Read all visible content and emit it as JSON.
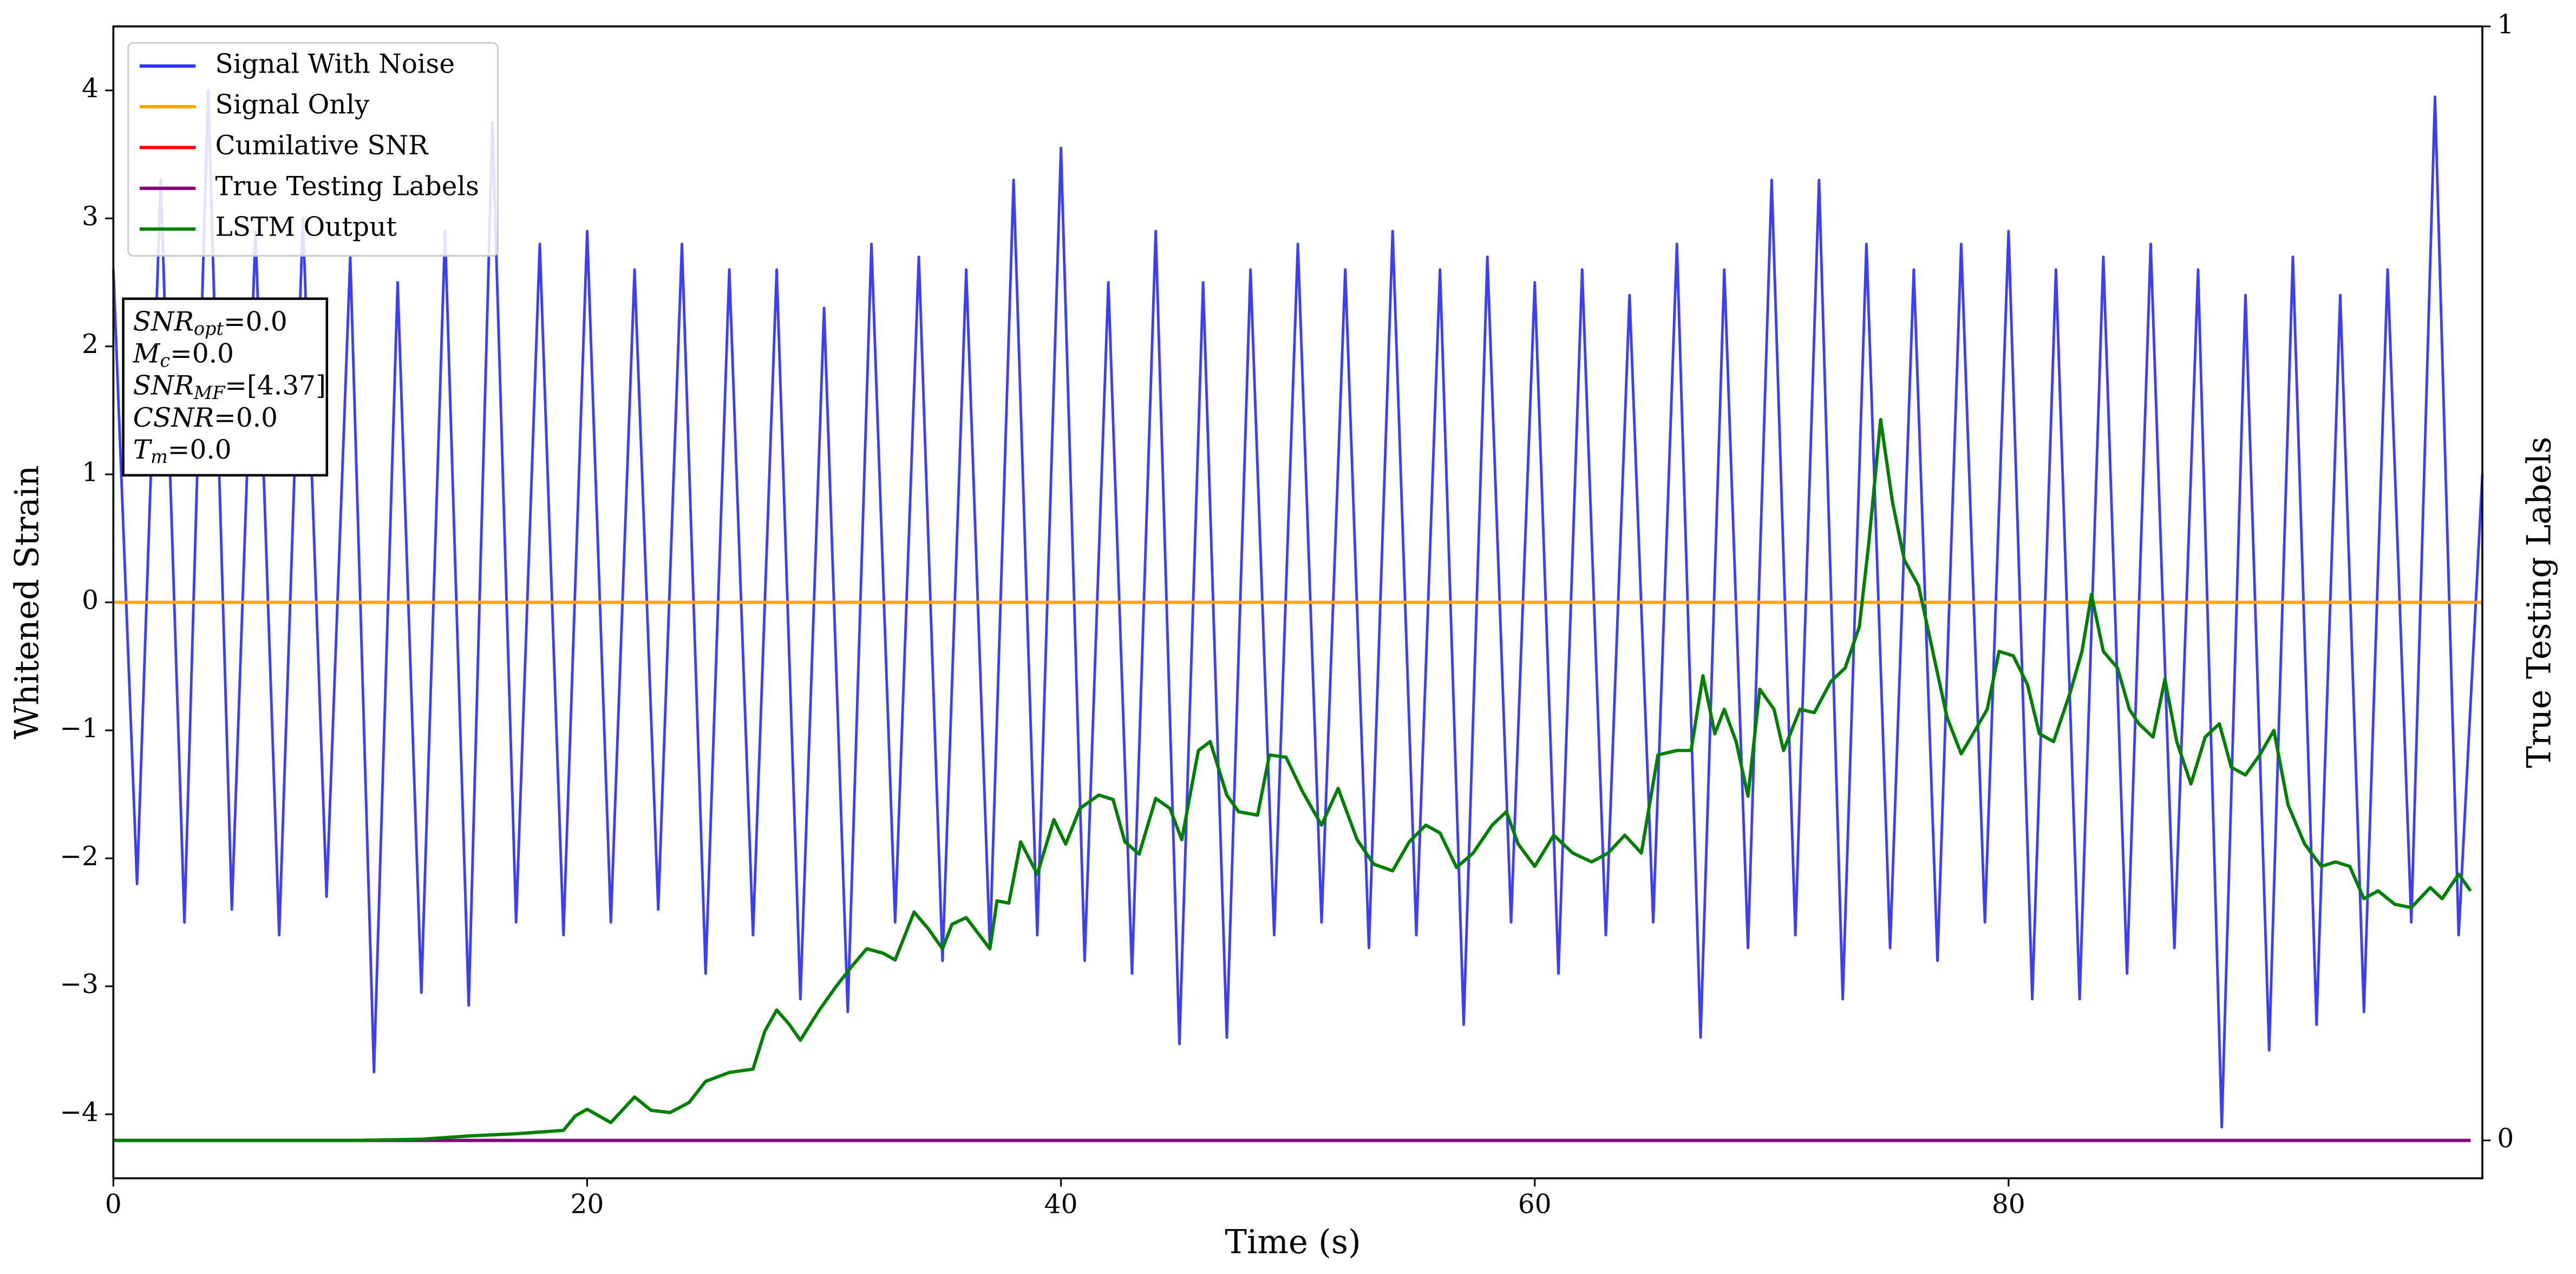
{
  "chart_data": {
    "type": "line",
    "xlabel": "Time (s)",
    "ylabel": "Whitened Strain",
    "y2label": "True Testing Labels",
    "xlim": [
      0,
      100
    ],
    "ylim": [
      -4.5,
      4.5
    ],
    "y2lim": [
      -0.034,
      1.0
    ],
    "xticks": [
      0,
      20,
      40,
      60,
      80
    ],
    "yticks": [
      {
        "value": -4,
        "label": "−4"
      },
      {
        "value": -3,
        "label": "−3"
      },
      {
        "value": -2,
        "label": "−2"
      },
      {
        "value": -1,
        "label": "−1"
      },
      0,
      1,
      2,
      3,
      4
    ],
    "y2ticks": [
      0,
      1
    ],
    "legend": "upper left",
    "series": [
      {
        "name": "Signal With Noise",
        "color": "#3333ff",
        "x": [
          0,
          1,
          2,
          3,
          4,
          5,
          6,
          7,
          8,
          9,
          10,
          11,
          12,
          13,
          14,
          15,
          16,
          17,
          18,
          19,
          20,
          21,
          22,
          23,
          24,
          25,
          26,
          27,
          28,
          29,
          30,
          31,
          32,
          33,
          34,
          35,
          36,
          37,
          38,
          39,
          40,
          41,
          42,
          43,
          44,
          45,
          46,
          47,
          48,
          49,
          50,
          51,
          52,
          53,
          54,
          55,
          56,
          57,
          58,
          59,
          60,
          61,
          62,
          63,
          64,
          65,
          66,
          67,
          68,
          69,
          70,
          71,
          72,
          73,
          74,
          75,
          76,
          77,
          78,
          79,
          80,
          81,
          82,
          83,
          84,
          85,
          86,
          87,
          88,
          89,
          90,
          91,
          92,
          93,
          94,
          95,
          96,
          97,
          98,
          99,
          100
        ],
        "values": [
          2.6,
          -2.2,
          3.3,
          -2.5,
          4.0,
          -2.4,
          2.9,
          -2.6,
          3.0,
          -2.3,
          2.7,
          -3.67,
          2.5,
          -3.05,
          2.9,
          -3.15,
          3.75,
          -2.5,
          2.8,
          -2.6,
          2.9,
          -2.5,
          2.6,
          -2.4,
          2.8,
          -2.9,
          2.6,
          -2.6,
          2.6,
          -3.1,
          2.3,
          -3.2,
          2.8,
          -2.5,
          2.7,
          -2.8,
          2.6,
          -2.7,
          3.3,
          -2.6,
          3.55,
          -2.8,
          2.5,
          -2.9,
          2.9,
          -3.45,
          2.5,
          -3.4,
          2.6,
          -2.6,
          2.8,
          -2.5,
          2.6,
          -2.7,
          2.9,
          -2.6,
          2.6,
          -3.3,
          2.7,
          -2.5,
          2.5,
          -2.9,
          2.6,
          -2.6,
          2.4,
          -2.5,
          2.8,
          -3.4,
          2.6,
          -2.7,
          3.3,
          -2.6,
          3.3,
          -3.1,
          2.8,
          -2.7,
          2.6,
          -2.8,
          2.8,
          -2.5,
          2.9,
          -3.1,
          2.6,
          -3.1,
          2.7,
          -2.9,
          2.8,
          -2.7,
          2.6,
          -4.1,
          2.4,
          -3.5,
          2.7,
          -3.3,
          2.4,
          -3.2,
          2.6,
          -2.5,
          3.95,
          -2.6,
          1.0
        ]
      },
      {
        "name": "Signal Only",
        "color": "#ffa500",
        "x": [
          0,
          100
        ],
        "values": [
          0,
          0
        ]
      },
      {
        "name": "Cumilative SNR",
        "color": "#ff0000",
        "x": [],
        "values": []
      },
      {
        "name": "True Testing Labels",
        "color": "#800080",
        "axis": "y2",
        "x": [
          0,
          99.5
        ],
        "values": [
          0,
          0
        ]
      },
      {
        "name": "LSTM Output",
        "color": "#008000",
        "axis": "y2",
        "x": [
          0,
          10,
          13,
          15,
          17,
          19,
          19.5,
          20,
          21,
          22,
          22.7,
          23.5,
          24.3,
          25,
          26,
          27,
          27.5,
          28,
          28.5,
          29,
          29.8,
          30.5,
          31.2,
          31.8,
          32.5,
          33,
          33.8,
          34.4,
          35,
          35.4,
          36,
          37,
          37.3,
          37.8,
          38.3,
          39,
          39.7,
          40.2,
          40.8,
          41.6,
          42.2,
          42.7,
          43.3,
          44,
          44.6,
          45.1,
          45.8,
          46.3,
          47,
          47.5,
          48.3,
          48.8,
          49.5,
          50.2,
          51,
          51.7,
          52.5,
          53.2,
          54,
          54.7,
          55.4,
          56,
          56.7,
          57.4,
          58.2,
          58.8,
          59.3,
          60,
          60.8,
          61.6,
          62.4,
          63.1,
          63.8,
          64.5,
          65.2,
          66,
          66.6,
          67.1,
          67.6,
          68,
          68.5,
          69,
          69.5,
          70.1,
          70.5,
          71.2,
          71.8,
          72.5,
          73.1,
          73.7,
          74.1,
          74.6,
          75.1,
          75.6,
          76.2,
          76.8,
          77.4,
          78,
          78.5,
          79.1,
          79.6,
          80.2,
          80.8,
          81.3,
          81.9,
          82.6,
          83.1,
          83.5,
          84,
          84.6,
          85.1,
          85.5,
          86.1,
          86.6,
          87.1,
          87.7,
          88.3,
          88.9,
          89.4,
          90,
          90.6,
          91.2,
          91.8,
          92.5,
          93.2,
          93.8,
          94.4,
          95,
          95.6,
          96.3,
          97,
          97.8,
          98.3,
          99,
          99.5
        ],
        "values": [
          0,
          0,
          0.001,
          0.004,
          0.006,
          0.009,
          0.022,
          0.028,
          0.016,
          0.039,
          0.027,
          0.025,
          0.034,
          0.053,
          0.061,
          0.064,
          0.098,
          0.117,
          0.105,
          0.09,
          0.117,
          0.138,
          0.157,
          0.172,
          0.168,
          0.162,
          0.205,
          0.19,
          0.172,
          0.194,
          0.2,
          0.172,
          0.215,
          0.213,
          0.268,
          0.239,
          0.288,
          0.266,
          0.298,
          0.31,
          0.306,
          0.268,
          0.257,
          0.307,
          0.298,
          0.27,
          0.35,
          0.358,
          0.31,
          0.295,
          0.292,
          0.346,
          0.344,
          0.313,
          0.283,
          0.316,
          0.27,
          0.248,
          0.242,
          0.268,
          0.283,
          0.276,
          0.245,
          0.258,
          0.283,
          0.295,
          0.266,
          0.246,
          0.274,
          0.258,
          0.25,
          0.258,
          0.274,
          0.258,
          0.346,
          0.35,
          0.35,
          0.417,
          0.365,
          0.387,
          0.358,
          0.309,
          0.405,
          0.387,
          0.35,
          0.387,
          0.384,
          0.412,
          0.424,
          0.461,
          0.536,
          0.647,
          0.573,
          0.521,
          0.498,
          0.439,
          0.38,
          0.347,
          0.365,
          0.387,
          0.439,
          0.435,
          0.409,
          0.365,
          0.358,
          0.402,
          0.439,
          0.49,
          0.439,
          0.424,
          0.387,
          0.374,
          0.362,
          0.414,
          0.358,
          0.32,
          0.362,
          0.374,
          0.335,
          0.328,
          0.346,
          0.368,
          0.301,
          0.266,
          0.246,
          0.25,
          0.246,
          0.217,
          0.224,
          0.212,
          0.209,
          0.227,
          0.217,
          0.239,
          0.224
        ]
      }
    ],
    "annotation": [
      {
        "symbol": "SNR",
        "subscript": "opt",
        "value": "=0.0"
      },
      {
        "symbol": "M",
        "subscript": "c",
        "value": "=0.0"
      },
      {
        "symbol": "SNR",
        "subscript": "MF",
        "value": "=[4.37]"
      },
      {
        "symbol": "CSNR",
        "subscript": "",
        "value": "=0.0"
      },
      {
        "symbol": "T",
        "subscript": "m",
        "value": "=0.0"
      }
    ]
  }
}
